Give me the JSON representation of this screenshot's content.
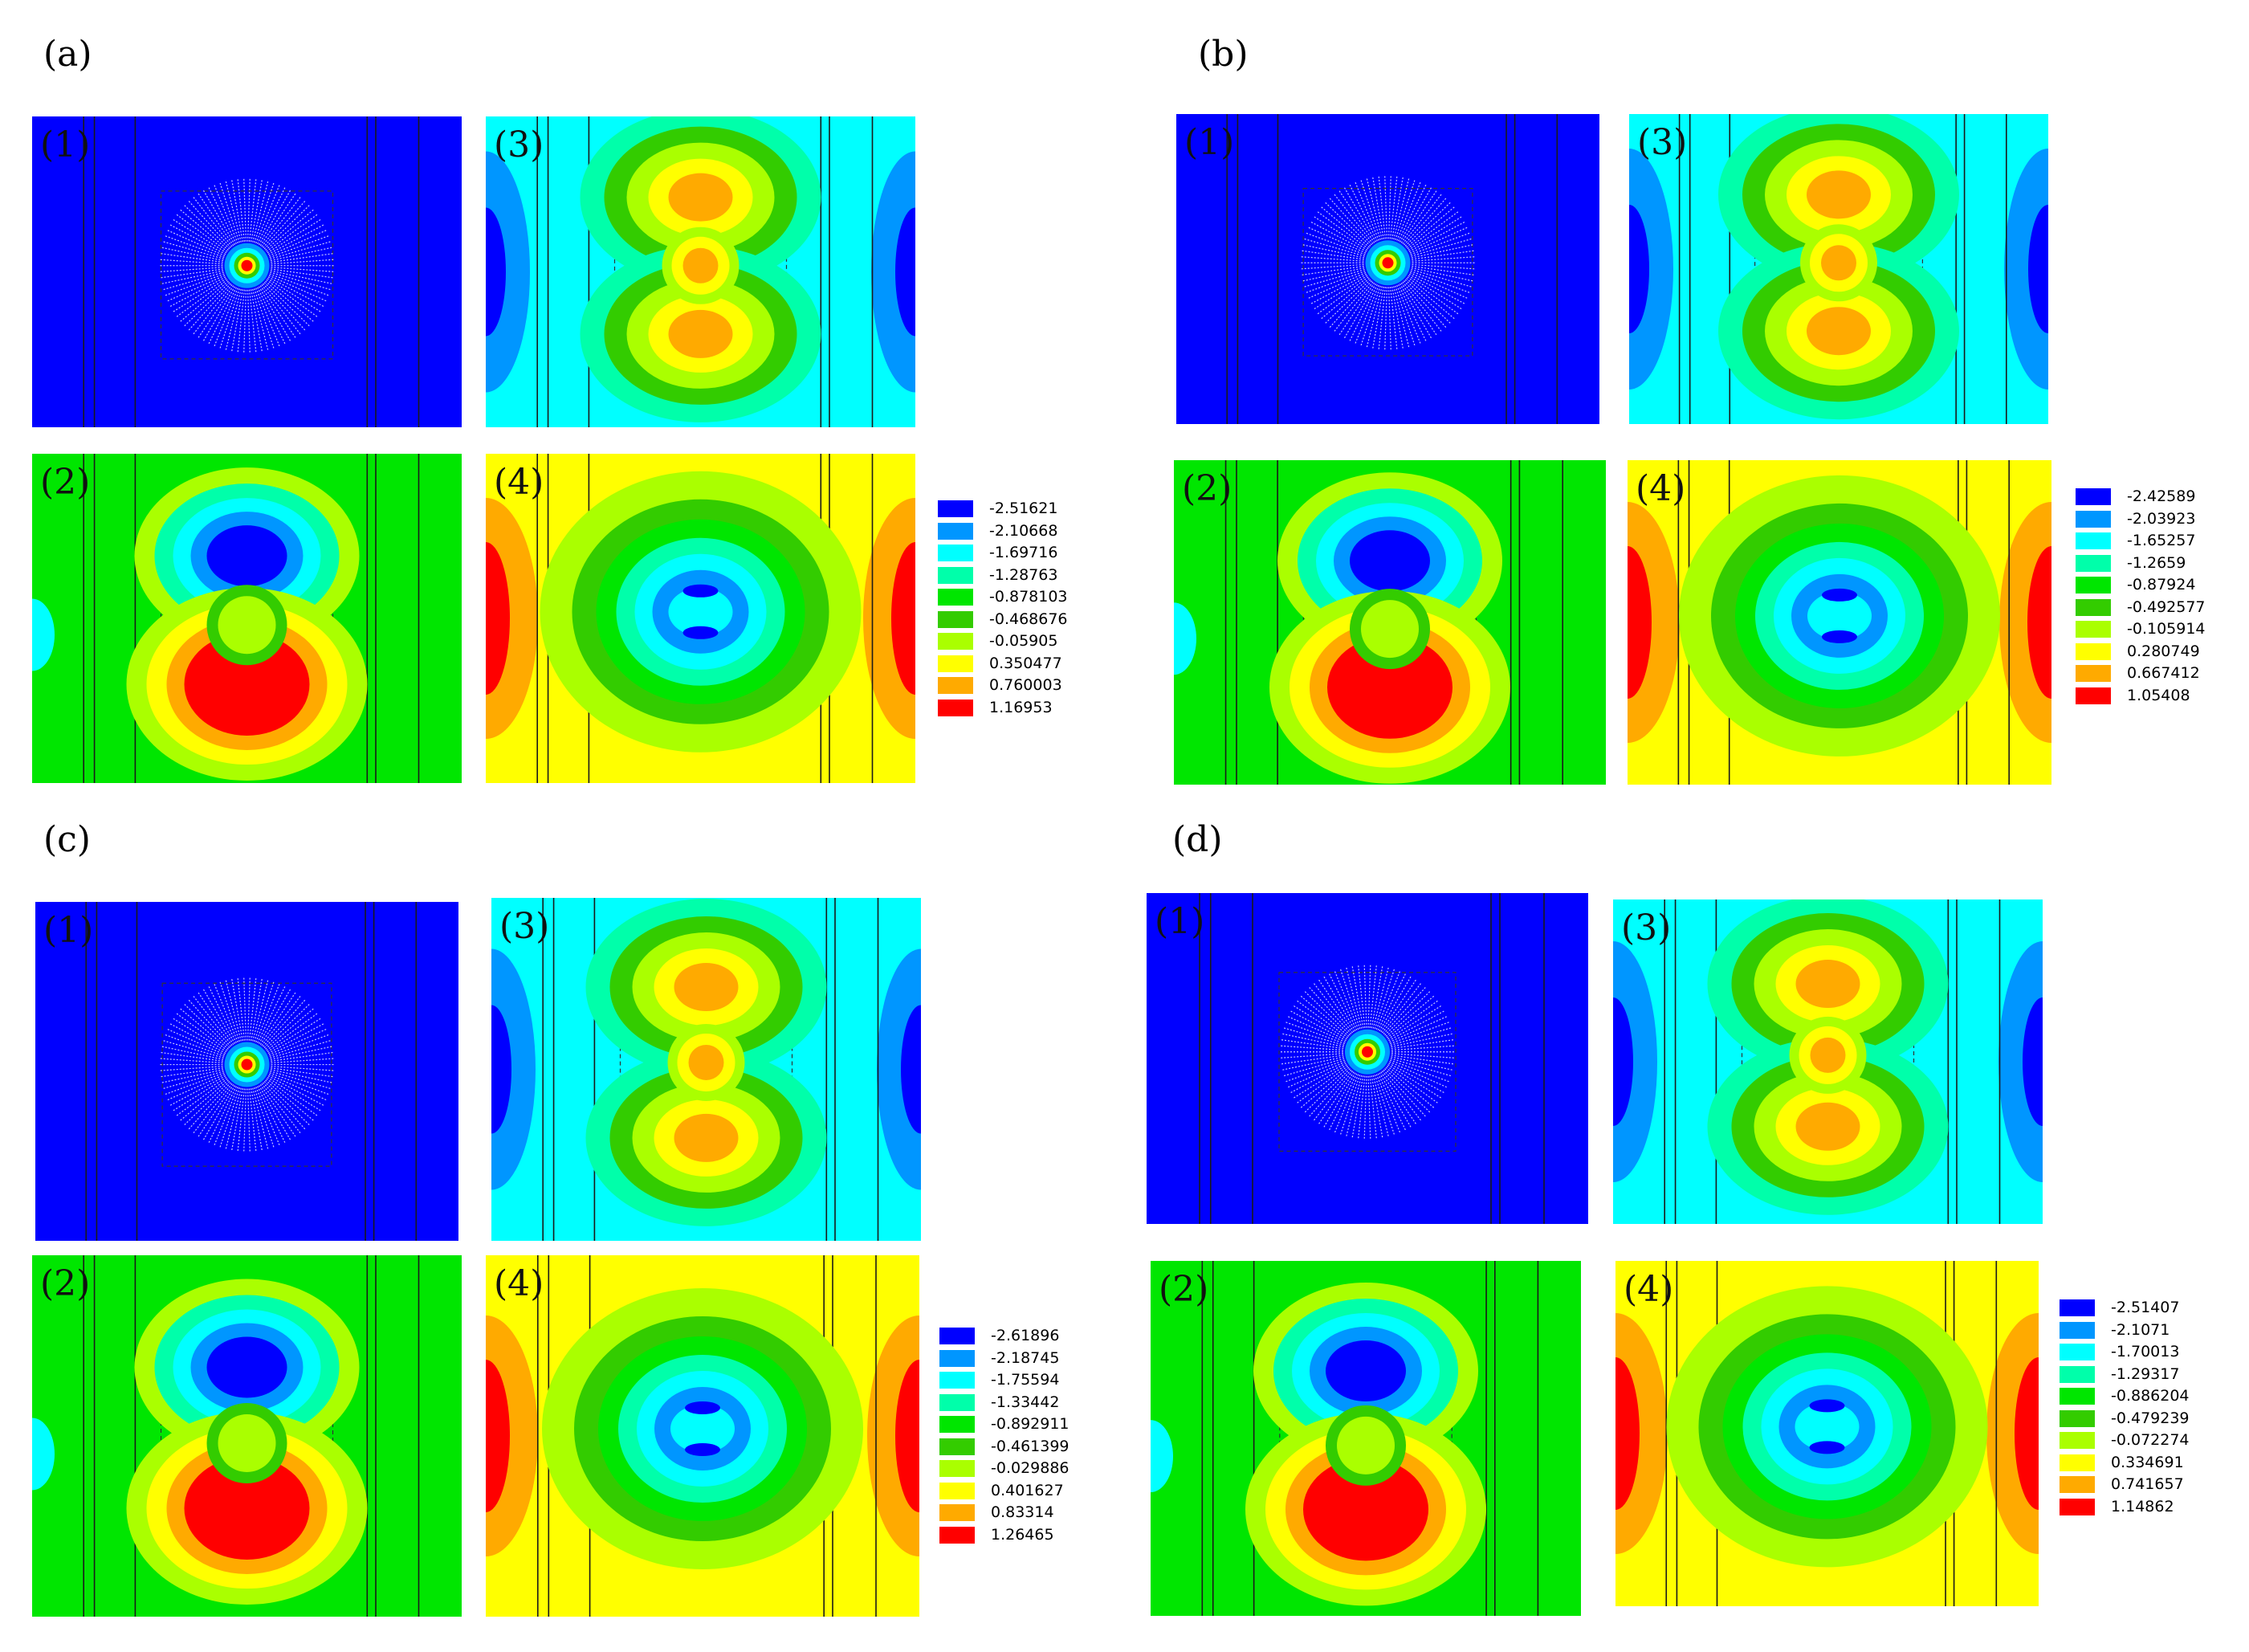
{
  "groups": [
    {
      "letter": "(a)",
      "panel_labels": [
        "(1)",
        "(2)",
        "(3)",
        "(4)"
      ],
      "legend": [
        "-2.51621",
        "-2.10668",
        "-1.69716",
        "-1.28763",
        "-0.878103",
        "-0.468676",
        "-0.05905",
        "0.350477",
        "0.760003",
        "1.16953"
      ]
    },
    {
      "letter": "(b)",
      "panel_labels": [
        "(1)",
        "(2)",
        "(3)",
        "(4)"
      ],
      "legend": [
        "-2.42589",
        "-2.03923",
        "-1.65257",
        "-1.2659",
        "-0.87924",
        "-0.492577",
        "-0.105914",
        "0.280749",
        "0.667412",
        "1.05408"
      ]
    },
    {
      "letter": "(c)",
      "panel_labels": [
        "(1)",
        "(2)",
        "(3)",
        "(4)"
      ],
      "legend": [
        "-2.61896",
        "-2.18745",
        "-1.75594",
        "-1.33442",
        "-0.892911",
        "-0.461399",
        "-0.029886",
        "0.401627",
        "0.83314",
        "1.26465"
      ]
    },
    {
      "letter": "(d)",
      "panel_labels": [
        "(1)",
        "(2)",
        "(3)",
        "(4)"
      ],
      "legend": [
        "-2.51407",
        "-2.1071",
        "-1.70013",
        "-1.29317",
        "-0.886204",
        "-0.479239",
        "-0.072274",
        "0.334691",
        "0.741657",
        "1.14862"
      ]
    }
  ],
  "colors": {
    "scale": [
      "#0000ff",
      "#0096ff",
      "#00ffff",
      "#00ffaa",
      "#00e600",
      "#33cc00",
      "#aaff00",
      "#ffff00",
      "#ffaa00",
      "#ff0000"
    ]
  }
}
